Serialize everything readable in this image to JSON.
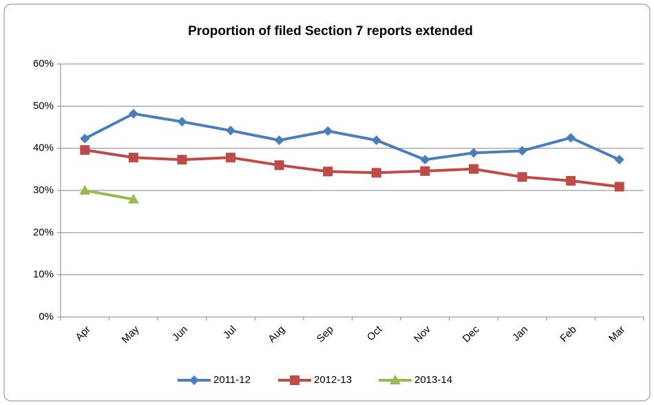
{
  "chart_data": {
    "type": "line",
    "title": "Proportion of filed Section 7 reports extended",
    "categories": [
      "Apr",
      "May",
      "Jun",
      "Jul",
      "Aug",
      "Sep",
      "Oct",
      "Nov",
      "Dec",
      "Jan",
      "Feb",
      "Mar"
    ],
    "series": [
      {
        "name": "2011-12",
        "color": "#4a7ebb",
        "marker": "diamond",
        "values": [
          42.3,
          48.2,
          46.3,
          44.2,
          41.9,
          44.1,
          41.9,
          37.3,
          38.9,
          39.4,
          42.5,
          37.3
        ]
      },
      {
        "name": "2012-13",
        "color": "#be4b48",
        "marker": "square",
        "values": [
          39.6,
          37.8,
          37.3,
          37.8,
          36.0,
          34.5,
          34.2,
          34.6,
          35.1,
          33.2,
          32.3,
          30.9
        ]
      },
      {
        "name": "2013-14",
        "color": "#98b954",
        "marker": "triangle",
        "values": [
          30.0,
          27.9,
          null,
          null,
          null,
          null,
          null,
          null,
          null,
          null,
          null,
          null
        ]
      }
    ],
    "ylim": [
      0,
      60
    ],
    "yticks": [
      {
        "value": 0,
        "label": "0%"
      },
      {
        "value": 10,
        "label": "10%"
      },
      {
        "value": 20,
        "label": "20%"
      },
      {
        "value": 30,
        "label": "30%"
      },
      {
        "value": 40,
        "label": "40%"
      },
      {
        "value": 50,
        "label": "50%"
      },
      {
        "value": 60,
        "label": "60%"
      }
    ],
    "grid": true,
    "legend": "bottom"
  }
}
